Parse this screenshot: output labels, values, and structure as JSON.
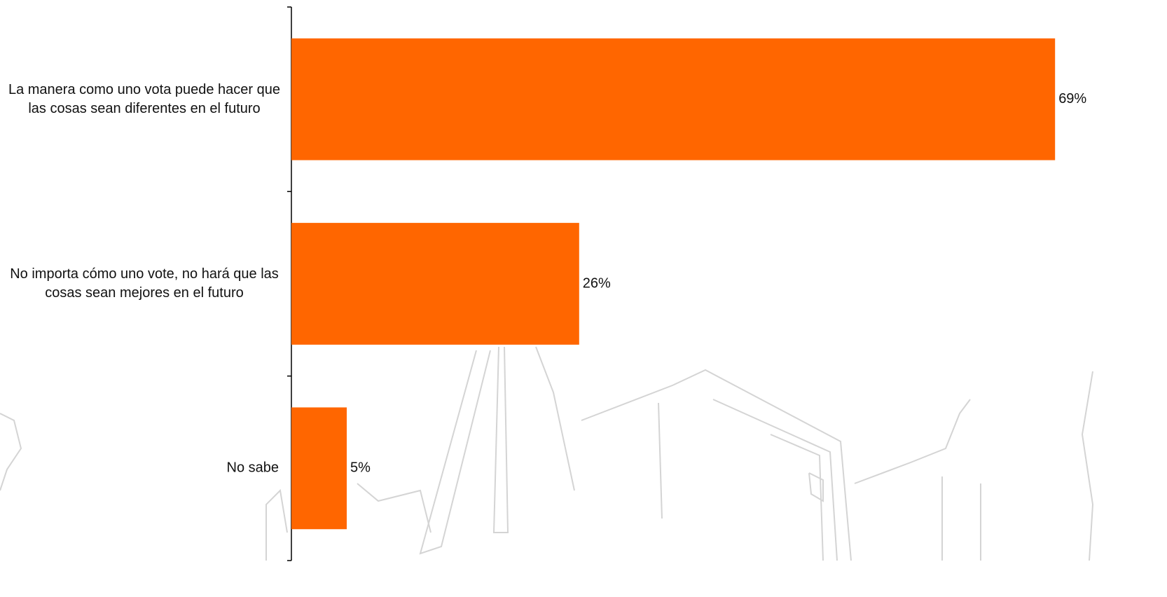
{
  "chart_data": {
    "type": "bar",
    "orientation": "horizontal",
    "categories": [
      "La manera como uno vota puede hacer que las cosas sean diferentes en el futuro",
      "No importa cómo uno vote, no hará que las cosas sean mejores en el futuro",
      "No sabe"
    ],
    "values": [
      69,
      26,
      5
    ],
    "value_labels": [
      "69%",
      "26%",
      "5%"
    ],
    "color": "#ff6600"
  }
}
